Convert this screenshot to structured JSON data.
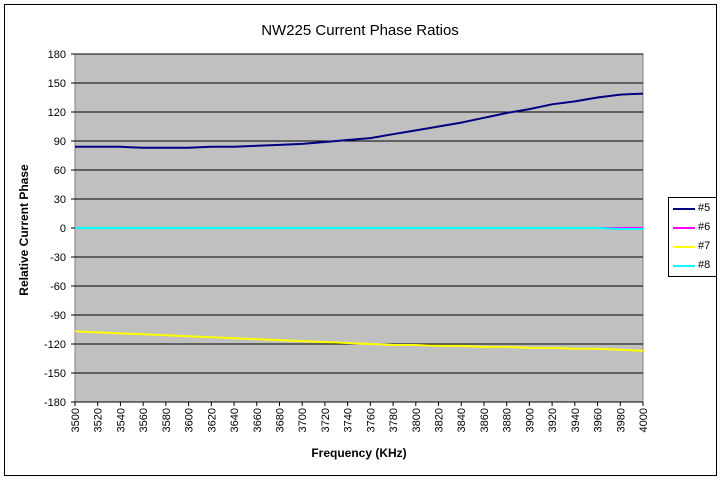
{
  "chart_data": {
    "type": "line",
    "title": "NW225 Current Phase Ratios",
    "xlabel": "Frequency (KHz)",
    "ylabel": "Relative Current Phase",
    "ylim": [
      -180,
      180
    ],
    "yticks": [
      180,
      150,
      120,
      90,
      60,
      30,
      0,
      -30,
      -60,
      -90,
      -120,
      -150,
      -180
    ],
    "xlim": [
      3500,
      4000
    ],
    "x": [
      3500,
      3520,
      3540,
      3560,
      3580,
      3600,
      3620,
      3640,
      3660,
      3680,
      3700,
      3720,
      3740,
      3760,
      3780,
      3800,
      3820,
      3840,
      3860,
      3880,
      3900,
      3920,
      3940,
      3960,
      3980,
      4000
    ],
    "grid": true,
    "legend_position": "right",
    "plot_background": "#c0c0c0",
    "series": [
      {
        "name": "#5",
        "color": "#000080",
        "values": [
          84,
          84,
          84,
          83,
          83,
          83,
          84,
          84,
          85,
          86,
          87,
          89,
          91,
          93,
          97,
          101,
          105,
          109,
          114,
          119,
          123,
          128,
          131,
          135,
          138,
          139
        ]
      },
      {
        "name": "#6",
        "color": "#ff00ff",
        "values": [
          0,
          0,
          0,
          0,
          0,
          0,
          0,
          0,
          0,
          0,
          0,
          0,
          0,
          0,
          0,
          0,
          0,
          0,
          0,
          0,
          0,
          0,
          0,
          0,
          0,
          0
        ]
      },
      {
        "name": "#7",
        "color": "#ffff00",
        "values": [
          -107,
          -108,
          -109,
          -110,
          -111,
          -112,
          -113,
          -114,
          -115,
          -116,
          -117,
          -118,
          -119,
          -120,
          -121,
          -121,
          -122,
          -122,
          -123,
          -123,
          -124,
          -124,
          -125,
          -125,
          -126,
          -127
        ]
      },
      {
        "name": "#8",
        "color": "#00ffff",
        "values": [
          0,
          0,
          0,
          0,
          0,
          0,
          0,
          0,
          0,
          0,
          0,
          0,
          0,
          0,
          0,
          0,
          0,
          0,
          0,
          0,
          0,
          0,
          0,
          0,
          -1,
          -1
        ]
      }
    ]
  }
}
